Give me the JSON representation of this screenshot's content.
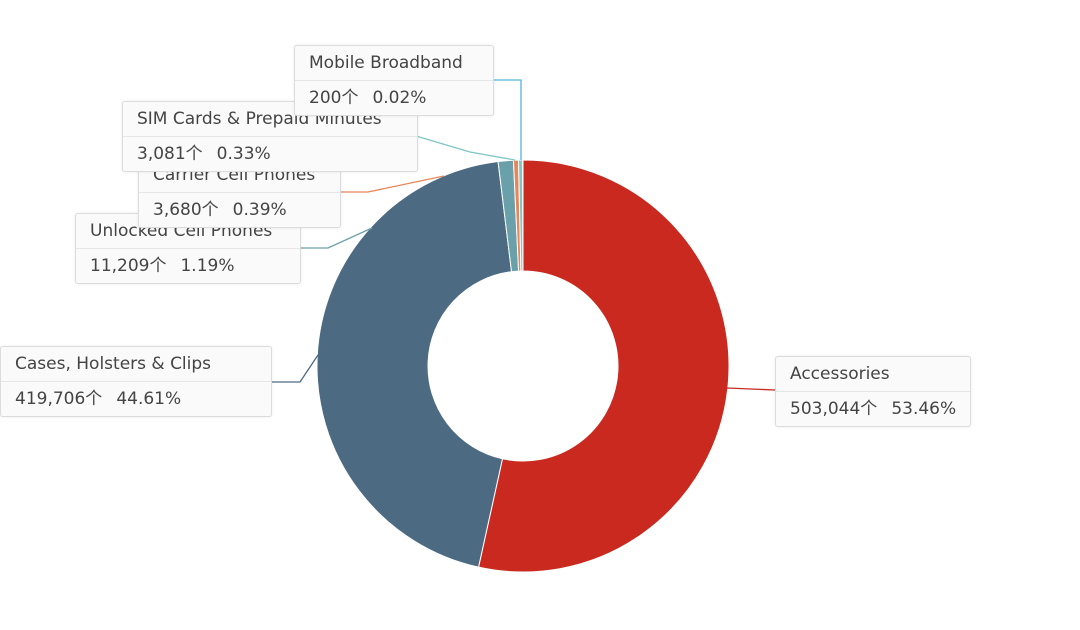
{
  "chart_data": {
    "type": "pie",
    "subtype": "donut",
    "unit": "个",
    "slices": [
      {
        "label": "Accessories",
        "value": 503044,
        "value_text": "503,044个",
        "percent": "53.46%",
        "color": "#c9291f"
      },
      {
        "label": "Cases, Holsters & Clips",
        "value": 419706,
        "value_text": "419,706个",
        "percent": "44.61%",
        "color": "#4d6a83"
      },
      {
        "label": "Unlocked Cell Phones",
        "value": 11209,
        "value_text": "11,209个",
        "percent": "1.19%",
        "color": "#6aa0a9"
      },
      {
        "label": "Carrier Cell Phones",
        "value": 3680,
        "value_text": "3,680个",
        "percent": "0.39%",
        "color": "#e8855a"
      },
      {
        "label": "SIM Cards & Prepaid Minutes",
        "value": 3081,
        "value_text": "3,081个",
        "percent": "0.33%",
        "color": "#7fc6c4"
      },
      {
        "label": "Mobile Broadband",
        "value": 200,
        "value_text": "200个",
        "percent": "0.02%",
        "color": "#55b3d6"
      }
    ]
  }
}
